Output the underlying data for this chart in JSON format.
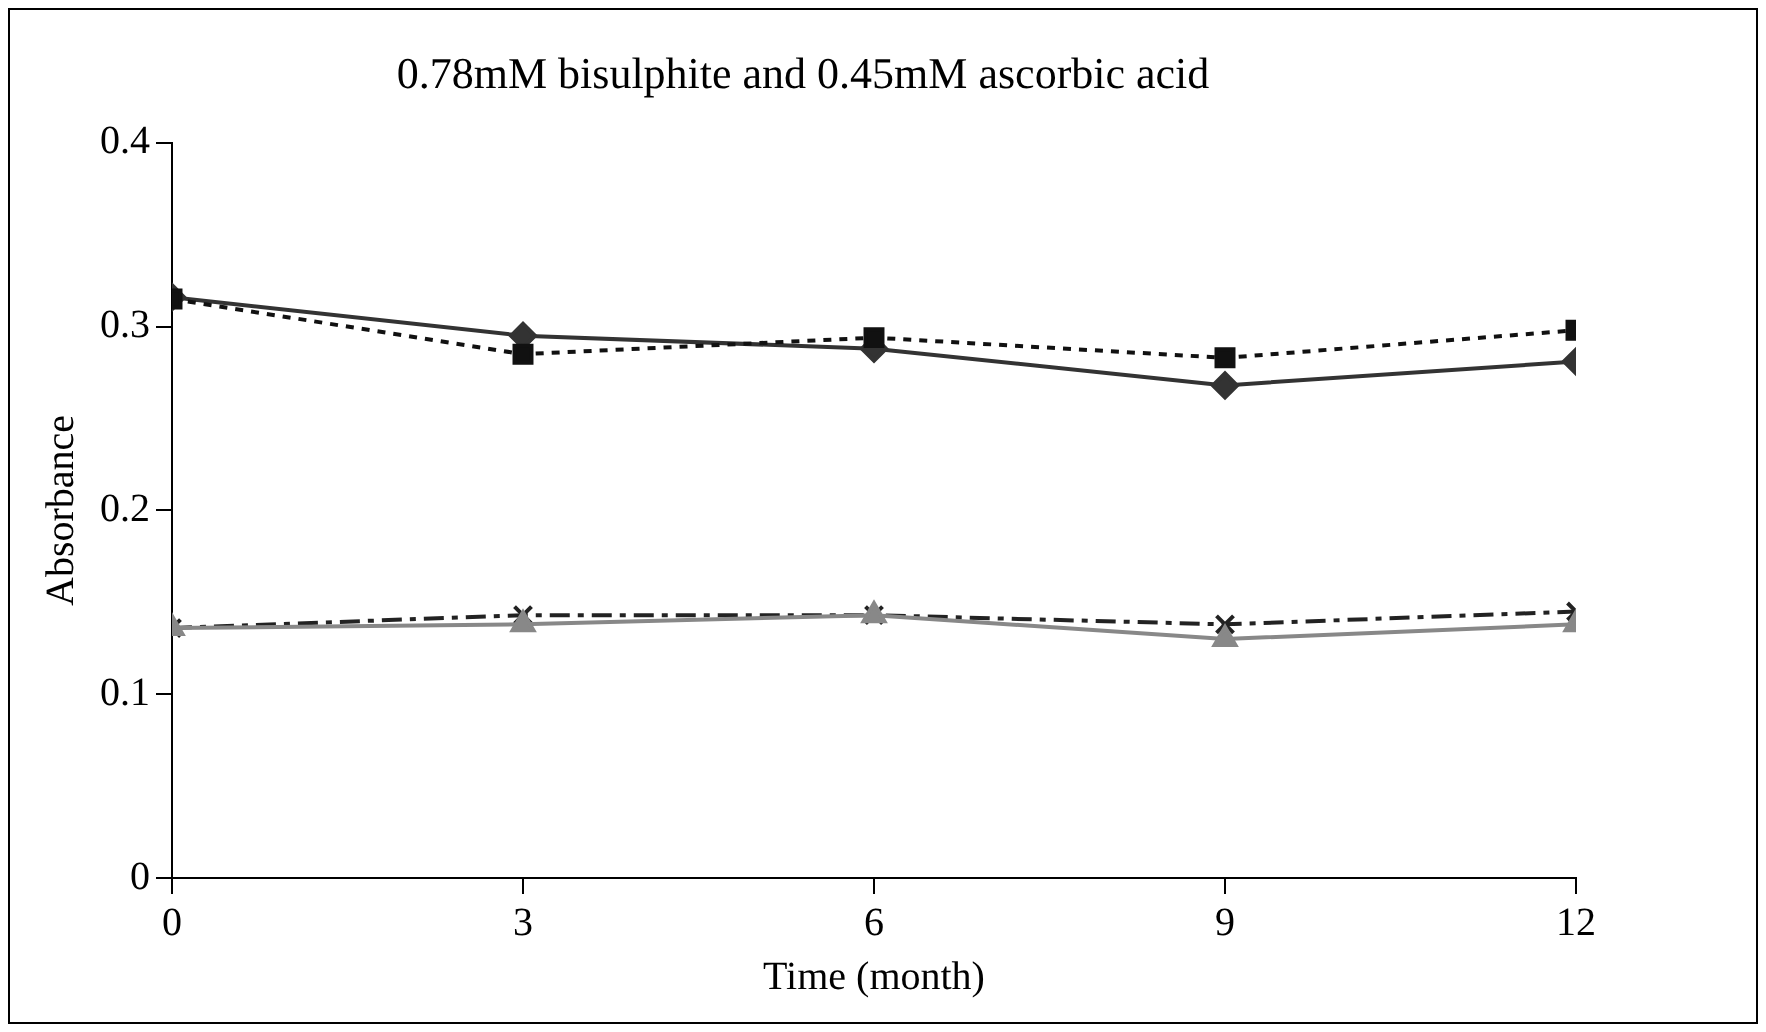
{
  "chart_data": {
    "type": "line",
    "title": "0.78mM bisulphite and 0.45mM ascorbic acid",
    "xlabel": "Time (month)",
    "ylabel": "Absorbance",
    "x": [
      0,
      3,
      6,
      9,
      12
    ],
    "xlim": [
      0,
      12
    ],
    "xticks": [
      0,
      3,
      6,
      9,
      12
    ],
    "ylim": [
      0,
      0.4
    ],
    "yticks": [
      0,
      0.1,
      0.2,
      0.3,
      0.4
    ],
    "grid": false,
    "legend": false,
    "series": [
      {
        "color": "#333333",
        "marker": "diamond",
        "line_style": "solid",
        "values": [
          0.316,
          0.295,
          0.288,
          0.268,
          0.281
        ]
      },
      {
        "color": "#111111",
        "marker": "square",
        "line_style": "dotted",
        "values": [
          0.315,
          0.285,
          0.294,
          0.283,
          0.298
        ]
      },
      {
        "color": "#222222",
        "marker": "cross",
        "line_style": "dashed",
        "values": [
          0.136,
          0.143,
          0.143,
          0.138,
          0.145
        ]
      },
      {
        "color": "#888888",
        "marker": "triangle",
        "line_style": "solid",
        "values": [
          0.136,
          0.138,
          0.143,
          0.13,
          0.138
        ]
      }
    ]
  }
}
